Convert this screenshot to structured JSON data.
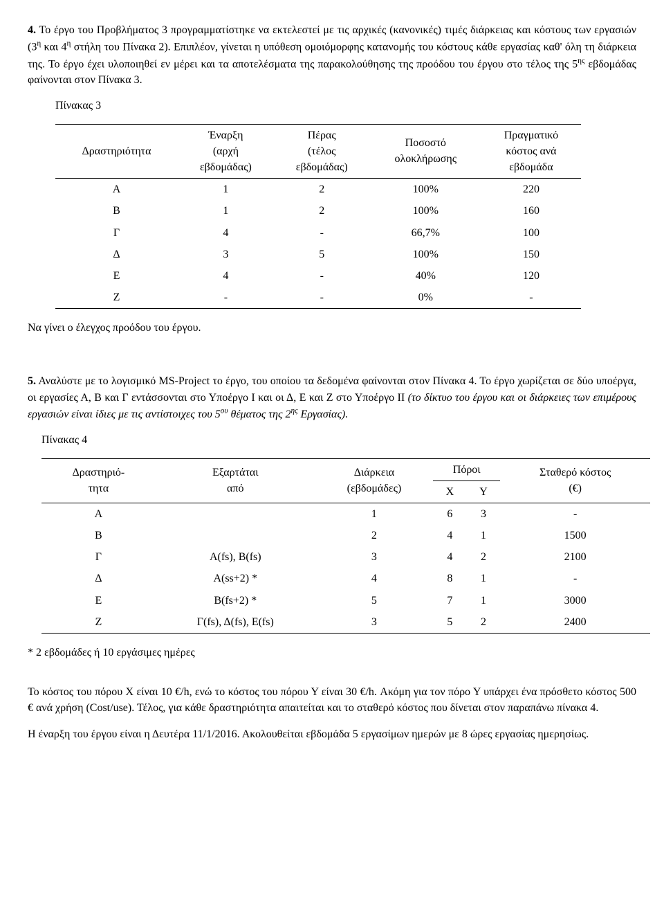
{
  "p4": {
    "lead": "4.",
    "body": " Το έργο του Προβλήματος 3 προγραμματίστηκε να εκτελεστεί με τις αρχικές (κανονικές) τιμές διάρκειας και κόστους των εργασιών (3",
    "sup1": "η",
    "mid1": " και 4",
    "sup2": "η",
    "mid2": " στήλη του Πίνακα 2). Επιπλέον, γίνεται η υπόθεση ομοιόμορφης κατανομής του κόστους κάθε εργασίας καθ' όλη τη διάρκεια της. Το έργο έχει υλοποιηθεί εν μέρει και τα αποτελέσματα της παρακολούθησης της προόδου του έργου στο τέλος της 5",
    "sup3": "ης",
    "tail": " εβδομάδας φαίνονται στον Πίνακα 3."
  },
  "t3_title": "Πίνακας 3",
  "t3": {
    "h": {
      "activity": "Δραστηριότητα",
      "start1": "Έναρξη",
      "start2": "(αρχή",
      "start3": "εβδομάδας)",
      "end1": "Πέρας",
      "end2": "(τέλος",
      "end3": "εβδομάδας)",
      "pct1": "Ποσοστό",
      "pct2": "ολοκλήρωσης",
      "cost1": "Πραγματικό",
      "cost2": "κόστος ανά",
      "cost3": "εβδομάδα"
    },
    "r": [
      {
        "a": "Α",
        "s": "1",
        "e": "2",
        "p": "100%",
        "c": "220"
      },
      {
        "a": "Β",
        "s": "1",
        "e": "2",
        "p": "100%",
        "c": "160"
      },
      {
        "a": "Γ",
        "s": "4",
        "e": "-",
        "p": "66,7%",
        "c": "100"
      },
      {
        "a": "Δ",
        "s": "3",
        "e": "5",
        "p": "100%",
        "c": "150"
      },
      {
        "a": "Ε",
        "s": "4",
        "e": "-",
        "p": "40%",
        "c": "120"
      },
      {
        "a": "Ζ",
        "s": "-",
        "e": "-",
        "p": "0%",
        "c": "-"
      }
    ]
  },
  "p4b": "Να γίνει ο έλεγχος προόδου του έργου.",
  "p5": {
    "lead": "5.",
    "a": " Αναλύστε με το λογισμικό MS-Project το έργο, του οποίου τα δεδομένα φαίνονται στον Πίνακα 4. Το έργο χωρίζεται σε δύο υποέργα, οι εργασίες Α, Β και Γ εντάσσονται στο Υποέργο Ι και οι Δ, Ε και Ζ στο Υποέργο ΙΙ ",
    "it1": "(το δίκτυο του έργου και οι διάρκειες των επιμέρους εργασιών είναι ίδιες με τις αντίστοιχες του 5",
    "sup1": "ου",
    "it2": " θέματος της 2",
    "sup2": "ης",
    "it3": " Εργασίας)."
  },
  "t4_title": "Πίνακας 4",
  "t4": {
    "h": {
      "act1": "Δραστηριό-",
      "act2": "τητα",
      "dep1": "Εξαρτάται",
      "dep2": "από",
      "dur1": "Διάρκεια",
      "dur2": "(εβδομάδες)",
      "res": "Πόροι",
      "x": "X",
      "y": "Y",
      "fc1": "Σταθερό κόστος",
      "fc2": "(€)"
    },
    "r": [
      {
        "a": "Α",
        "d": "",
        "w": "1",
        "x": "6",
        "y": "3",
        "c": "-"
      },
      {
        "a": "Β",
        "d": "",
        "w": "2",
        "x": "4",
        "y": "1",
        "c": "1500"
      },
      {
        "a": "Γ",
        "d": "A(fs), B(fs)",
        "w": "3",
        "x": "4",
        "y": "2",
        "c": "2100"
      },
      {
        "a": "Δ",
        "d": "A(ss+2) *",
        "w": "4",
        "x": "8",
        "y": "1",
        "c": "-"
      },
      {
        "a": "Ε",
        "d": "B(fs+2) *",
        "w": "5",
        "x": "7",
        "y": "1",
        "c": "3000"
      },
      {
        "a": "Ζ",
        "d": "Γ(fs), Δ(fs), E(fs)",
        "w": "3",
        "x": "5",
        "y": "2",
        "c": "2400"
      }
    ]
  },
  "foot": "* 2 εβδομάδες ή 10 εργάσιμες ημέρες",
  "p6": "Το κόστος του πόρου Χ είναι 10 €/h, ενώ το κόστος του πόρου Υ είναι 30 €/h. Ακόμη για τον πόρο Υ υπάρχει ένα πρόσθετο κόστος 500 € ανά χρήση (Cost/use).  Τέλος, για κάθε δραστηριότητα απαιτείται και το σταθερό κόστος που δίνεται στον παραπάνω πίνακα 4.",
  "p7": "Η έναρξη του έργου είναι η Δευτέρα 11/1/2016. Ακολουθείται εβδομάδα 5 εργασίμων ημερών με 8 ώρες εργασίας ημερησίως."
}
